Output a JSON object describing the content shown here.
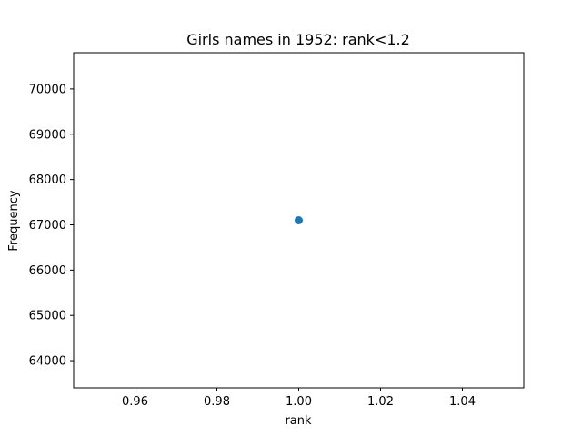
{
  "chart_data": {
    "type": "scatter",
    "title": "Girls names in 1952: rank<1.2",
    "xlabel": "rank",
    "ylabel": "Frequency",
    "xlim": [
      0.945,
      1.055
    ],
    "ylim": [
      63400,
      70800
    ],
    "xticks": [
      0.96,
      0.98,
      1.0,
      1.02,
      1.04
    ],
    "xtick_labels": [
      "0.96",
      "0.98",
      "1.00",
      "1.02",
      "1.04"
    ],
    "yticks": [
      64000,
      65000,
      66000,
      67000,
      68000,
      69000,
      70000
    ],
    "ytick_labels": [
      "64000",
      "65000",
      "66000",
      "67000",
      "68000",
      "69000",
      "70000"
    ],
    "grid": false,
    "points": [
      {
        "x": 1.0,
        "y": 67100
      }
    ],
    "colors": {
      "marker": "#1f77b4",
      "axes": "#000000"
    }
  }
}
